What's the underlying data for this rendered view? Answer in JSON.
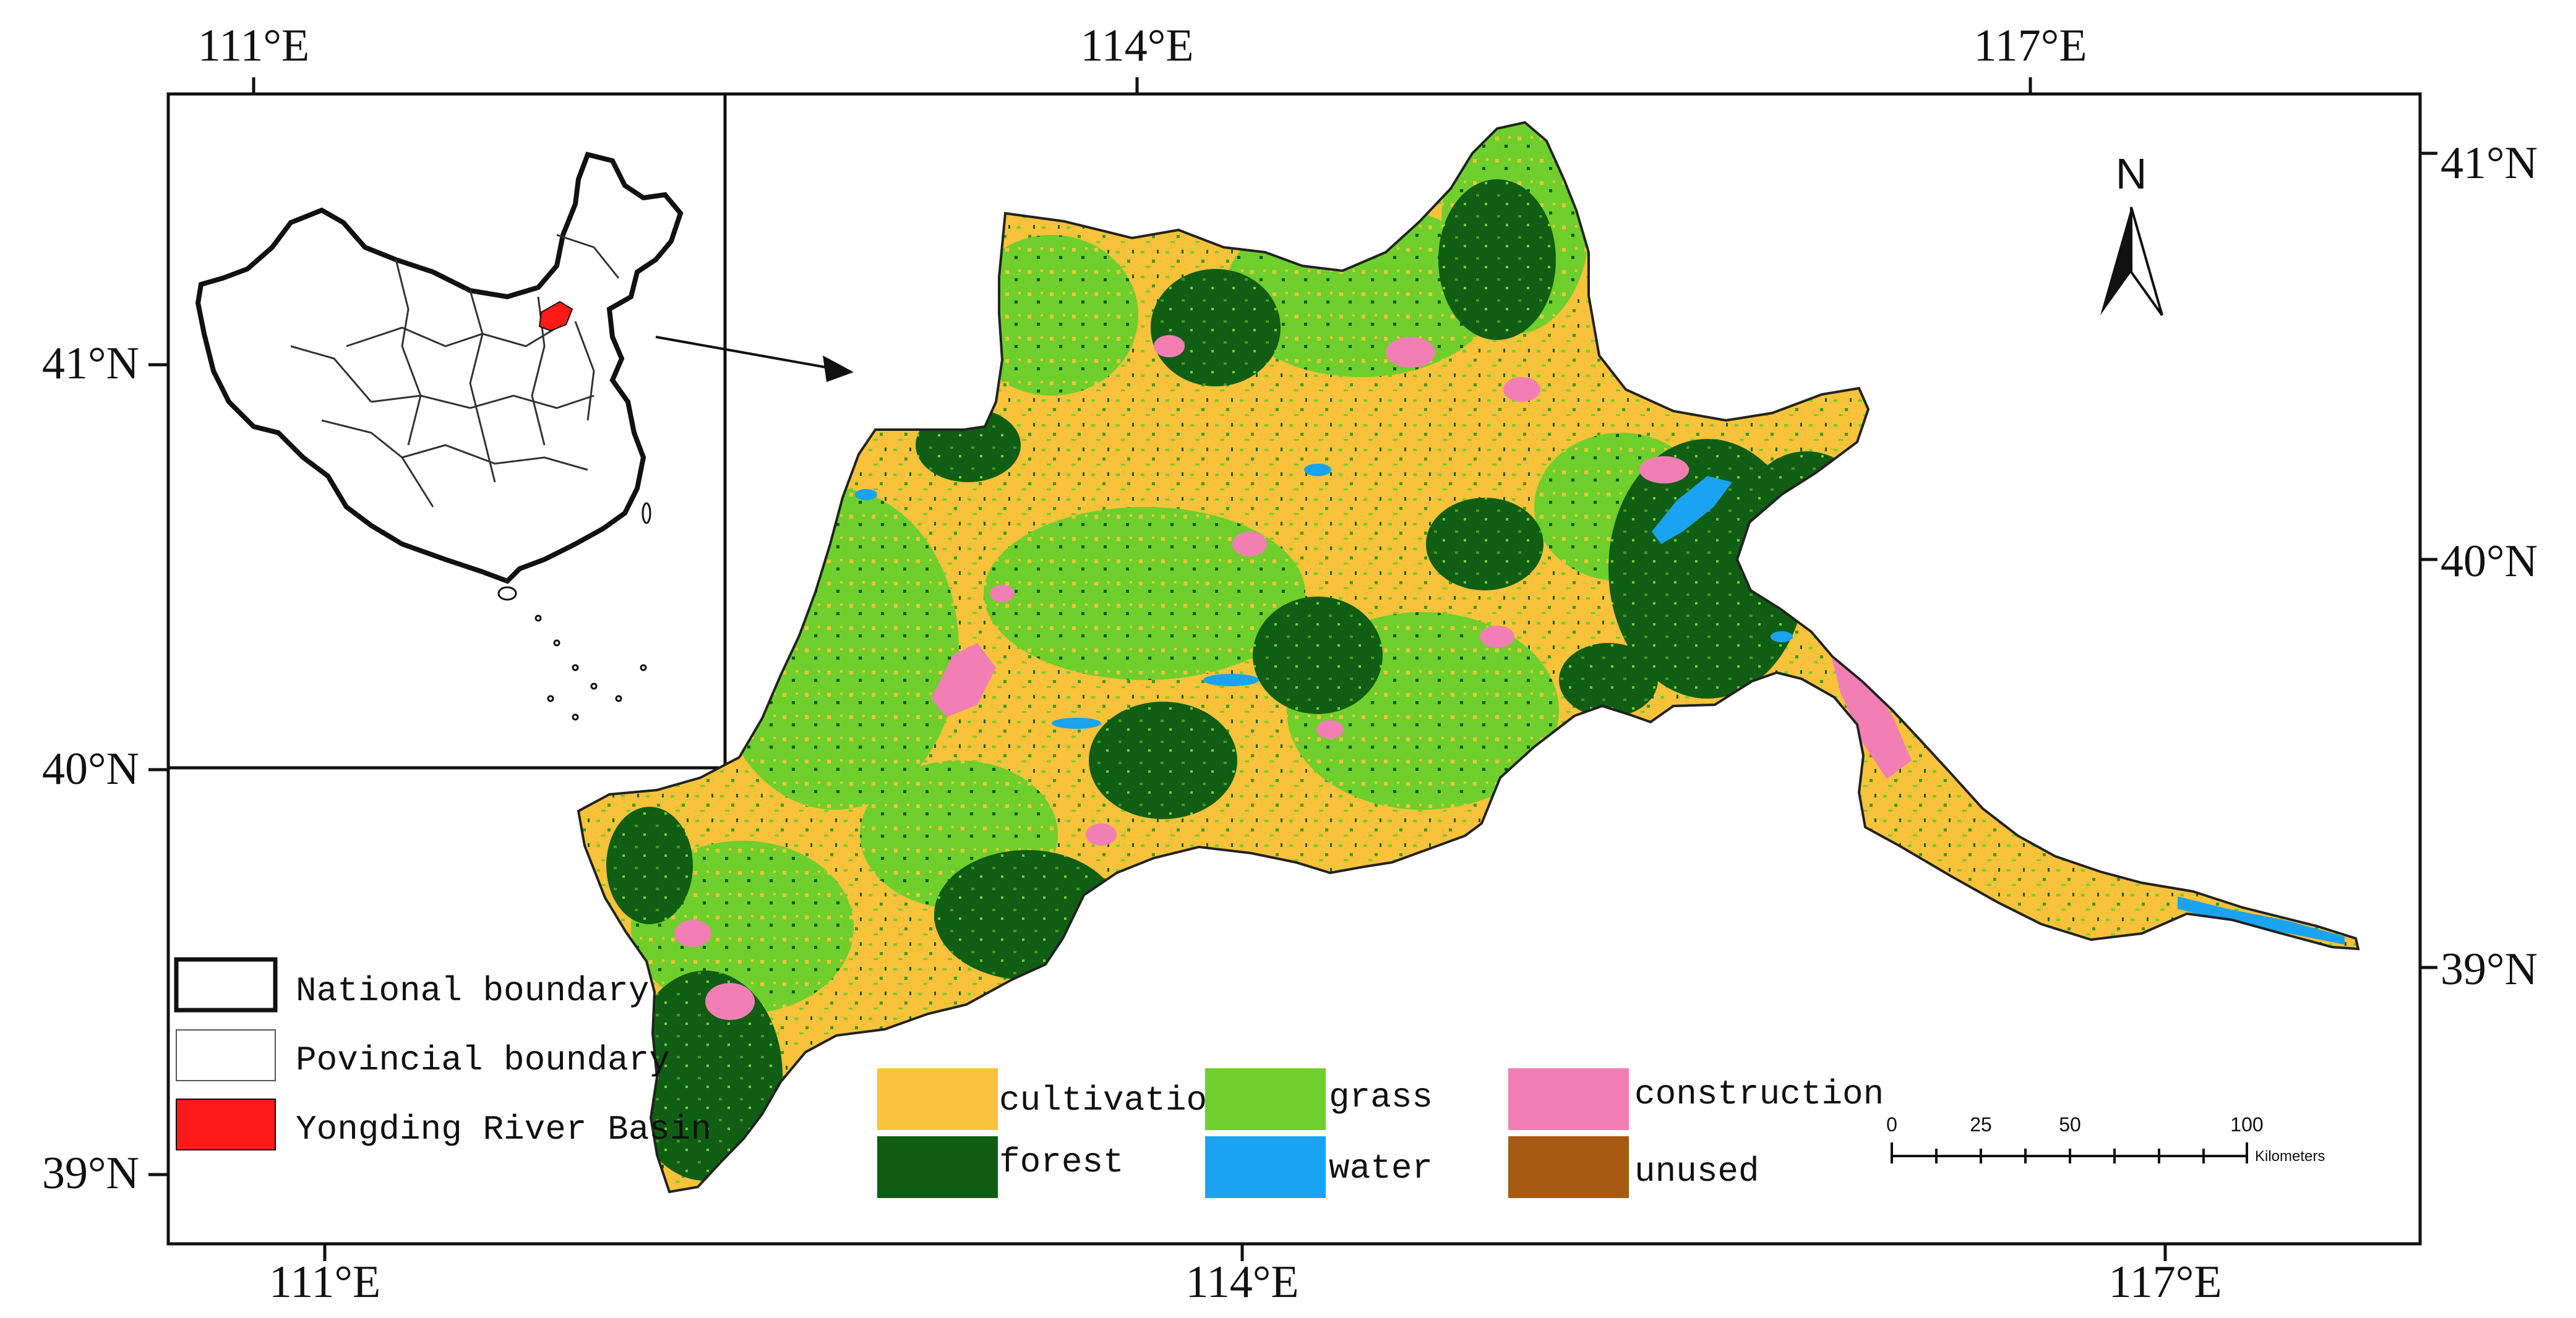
{
  "coordinates": {
    "top": [
      "111°E",
      "114°E",
      "117°E"
    ],
    "bottom": [
      "111°E",
      "114°E",
      "117°E"
    ],
    "left": [
      "41°N",
      "40°N",
      "39°N"
    ],
    "right": [
      "41°N",
      "40°N",
      "39°N"
    ]
  },
  "north_arrow": {
    "label": "N"
  },
  "boundary_legend": {
    "items": [
      {
        "label": "National boundary",
        "style": "thick",
        "fill": "#ffffff"
      },
      {
        "label": "Povincial boundary",
        "style": "thin",
        "fill": "#ffffff"
      },
      {
        "label": "Yongding River Basin",
        "style": "fill",
        "fill": "#ff1a1a"
      }
    ]
  },
  "landuse_legend": {
    "items": [
      {
        "label": "cultivation",
        "color": "#f8c23a"
      },
      {
        "label": "grass",
        "color": "#6fcf2c"
      },
      {
        "label": "construction",
        "color": "#f27fb4"
      },
      {
        "label": "forest",
        "color": "#0f5e14"
      },
      {
        "label": "water",
        "color": "#1aa3f0"
      },
      {
        "label": "unused",
        "color": "#a65a12"
      }
    ]
  },
  "scale_bar": {
    "ticks": [
      "0",
      "25",
      "50",
      "100"
    ],
    "unit": "Kilometers"
  },
  "colors": {
    "cultivation": "#f8c23a",
    "grass": "#6fcf2c",
    "forest": "#0f5e14",
    "construction": "#f27fb4",
    "water": "#1aa3f0",
    "basin_red": "#ff1a1a"
  }
}
